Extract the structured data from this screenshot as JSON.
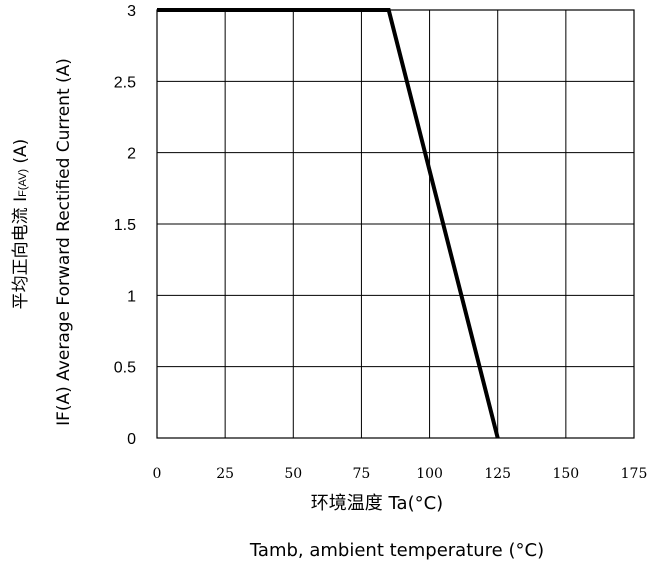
{
  "chart_data": {
    "type": "line",
    "xlim": [
      0,
      175
    ],
    "ylim": [
      0,
      3
    ],
    "x_ticks": [
      "0",
      "25",
      "50",
      "75",
      "100",
      "125",
      "150",
      "175"
    ],
    "y_ticks": [
      "0",
      "0.5",
      "1",
      "1.5",
      "2",
      "2.5",
      "3"
    ],
    "grid": true,
    "series": [
      {
        "x": [
          0,
          85,
          125
        ],
        "y": [
          3,
          3,
          0
        ],
        "color": "#000000"
      }
    ],
    "xlabel_line1": "环境温度 Ta(°C)",
    "xlabel_line2": "Tamb, ambient temperature (°C)",
    "ylabel_line1_main": "平均正向电流   I",
    "ylabel_line1_sub": "F(AV)",
    "ylabel_line1_unit": " (A)",
    "ylabel_line2": "IF(A)  Average Forward Rectified Current (A)"
  }
}
